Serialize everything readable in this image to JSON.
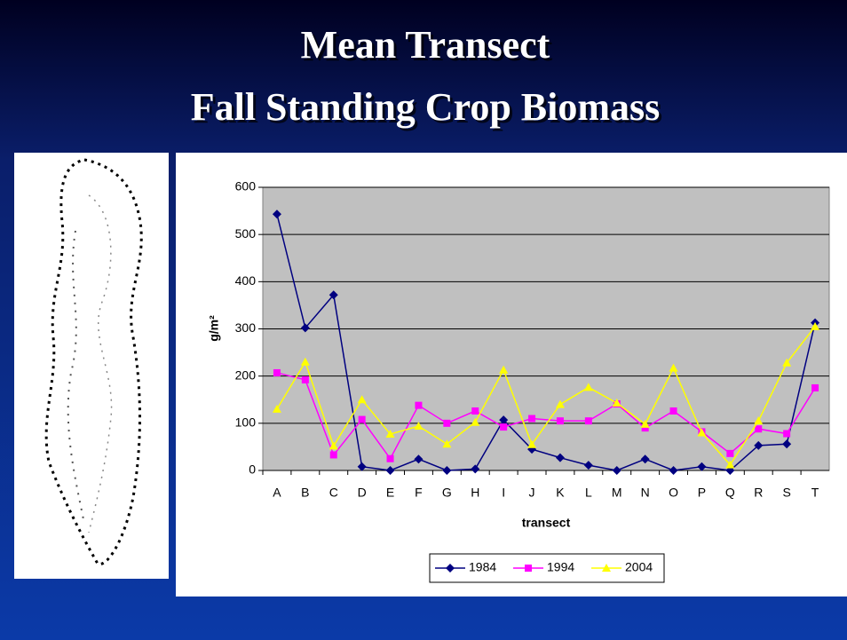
{
  "slide_title": [
    "Mean Transect",
    "Fall Standing Crop Biomass"
  ],
  "chart_data": {
    "type": "line",
    "xlabel": "transect",
    "ylabel": "g/m²",
    "categories": [
      "A",
      "B",
      "C",
      "D",
      "E",
      "F",
      "G",
      "H",
      "I",
      "J",
      "K",
      "L",
      "M",
      "N",
      "O",
      "P",
      "Q",
      "R",
      "S",
      "T"
    ],
    "series": [
      {
        "name": "1984",
        "color": "#000080",
        "marker": "diamond",
        "values": [
          543,
          302,
          372,
          8,
          0,
          24,
          0,
          3,
          107,
          45,
          27,
          11,
          0,
          24,
          0,
          8,
          0,
          53,
          56,
          313
        ]
      },
      {
        "name": "1994",
        "color": "#ff00ff",
        "marker": "square",
        "values": [
          207,
          192,
          33,
          108,
          25,
          138,
          100,
          126,
          92,
          110,
          105,
          105,
          141,
          90,
          126,
          82,
          36,
          88,
          78,
          175
        ]
      },
      {
        "name": "2004",
        "color": "#ffff00",
        "marker": "triangle",
        "values": [
          130,
          230,
          52,
          150,
          77,
          94,
          56,
          102,
          213,
          55,
          140,
          176,
          143,
          98,
          217,
          80,
          12,
          105,
          228,
          305
        ]
      }
    ],
    "ylim": [
      0,
      600
    ],
    "yticks": [
      0,
      100,
      200,
      300,
      400,
      500,
      600
    ],
    "grid": true,
    "legend": "bottom"
  }
}
